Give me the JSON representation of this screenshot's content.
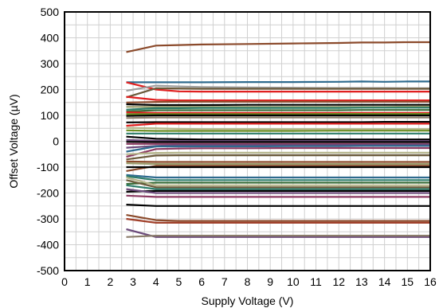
{
  "chart_data": {
    "type": "line",
    "xlabel": "Supply Voltage (V)",
    "ylabel": "Offset Voltage (µV)",
    "xlim": [
      0,
      16
    ],
    "ylim": [
      -500,
      500
    ],
    "x_ticks": [
      0,
      1,
      2,
      3,
      4,
      5,
      6,
      7,
      8,
      9,
      10,
      11,
      12,
      13,
      14,
      15,
      16
    ],
    "y_ticks": [
      -500,
      -400,
      -300,
      -200,
      -100,
      0,
      100,
      200,
      300,
      400,
      500
    ],
    "x_tick_labels": [
      "0",
      "1",
      "2",
      "3",
      "4",
      "5",
      "6",
      "7",
      "8",
      "9",
      "10",
      "11",
      "12",
      "13",
      "14",
      "15",
      "16"
    ],
    "y_tick_labels": [
      "-500",
      "-400",
      "-300",
      "-200",
      "-100",
      "0",
      "100",
      "200",
      "300",
      "400",
      "500"
    ],
    "grid": true,
    "legend": "none",
    "x": [
      2.7,
      4,
      5,
      6,
      8,
      10,
      12,
      13,
      14,
      15,
      16
    ],
    "series": [
      {
        "color": "#8B4A2B",
        "values": [
          345,
          370,
          372,
          374,
          376,
          378,
          380,
          382,
          382,
          383,
          383
        ]
      },
      {
        "color": "#2E6A8E",
        "values": [
          228,
          228,
          228,
          228,
          229,
          229,
          230,
          231,
          230,
          231,
          231
        ]
      },
      {
        "color": "#E02020",
        "values": [
          228,
          200,
          193,
          192,
          192,
          192,
          192,
          192,
          192,
          192,
          192
        ]
      },
      {
        "color": "#9E9E9E",
        "values": [
          195,
          215,
          212,
          210,
          208,
          207,
          206,
          206,
          206,
          205,
          205
        ]
      },
      {
        "color": "#6B5A3A",
        "values": [
          170,
          205,
          204,
          203,
          203,
          203,
          203,
          203,
          203,
          203,
          203
        ]
      },
      {
        "color": "#E02020",
        "values": [
          172,
          160,
          158,
          158,
          158,
          158,
          158,
          158,
          158,
          158,
          158
        ]
      },
      {
        "color": "#8B4A2B",
        "values": [
          150,
          152,
          153,
          153,
          153,
          153,
          153,
          153,
          153,
          153,
          153
        ]
      },
      {
        "color": "#000000",
        "values": [
          143,
          140,
          140,
          140,
          141,
          141,
          141,
          141,
          141,
          141,
          141
        ]
      },
      {
        "color": "#9A9A6A",
        "values": [
          133,
          133,
          133,
          133,
          133,
          133,
          133,
          133,
          133,
          134,
          134
        ]
      },
      {
        "color": "#2E7D6A",
        "values": [
          122,
          128,
          128,
          129,
          129,
          129,
          129,
          130,
          130,
          130,
          130
        ]
      },
      {
        "color": "#3A6E3A",
        "values": [
          115,
          120,
          120,
          120,
          120,
          120,
          120,
          121,
          121,
          121,
          121
        ]
      },
      {
        "color": "#E02020",
        "values": [
          112,
          110,
          110,
          110,
          110,
          110,
          110,
          110,
          110,
          110,
          110
        ]
      },
      {
        "color": "#6B8E23",
        "values": [
          105,
          105,
          105,
          105,
          105,
          105,
          106,
          106,
          106,
          106,
          106
        ]
      },
      {
        "color": "#000000",
        "values": [
          98,
          100,
          100,
          100,
          100,
          100,
          100,
          100,
          100,
          100,
          100
        ]
      },
      {
        "color": "#8B7D6B",
        "values": [
          90,
          92,
          92,
          92,
          92,
          92,
          92,
          92,
          92,
          92,
          92
        ]
      },
      {
        "color": "#000000",
        "values": [
          73,
          74,
          74,
          74,
          74,
          74,
          74,
          74,
          75,
          75,
          75
        ]
      },
      {
        "color": "#E02020",
        "values": [
          60,
          68,
          68,
          68,
          68,
          68,
          68,
          68,
          68,
          68,
          68
        ]
      },
      {
        "color": "#B5B58A",
        "values": [
          52,
          50,
          48,
          47,
          47,
          47,
          47,
          47,
          47,
          47,
          47
        ]
      },
      {
        "color": "#6B8E23",
        "values": [
          42,
          40,
          40,
          40,
          40,
          40,
          41,
          41,
          41,
          41,
          41
        ]
      },
      {
        "color": "#2E7D6A",
        "values": [
          30,
          30,
          30,
          30,
          30,
          30,
          30,
          30,
          30,
          30,
          30
        ]
      },
      {
        "color": "#000000",
        "values": [
          18,
          10,
          8,
          7,
          7,
          7,
          7,
          7,
          7,
          7,
          7
        ]
      },
      {
        "color": "#6B4A7A",
        "values": [
          5,
          2,
          1,
          1,
          1,
          1,
          1,
          1,
          1,
          1,
          1
        ]
      },
      {
        "color": "#000000",
        "values": [
          -2,
          -3,
          -3,
          -3,
          -3,
          -3,
          -3,
          -3,
          -3,
          -3,
          -3
        ]
      },
      {
        "color": "#8B3A62",
        "values": [
          -10,
          -10,
          -10,
          -10,
          -10,
          -10,
          -10,
          -10,
          -10,
          -10,
          -10
        ]
      },
      {
        "color": "#6B4A7A",
        "values": [
          -25,
          -18,
          -15,
          -15,
          -15,
          -15,
          -14,
          -14,
          -13,
          -13,
          -13
        ]
      },
      {
        "color": "#2E6A8E",
        "values": [
          -40,
          -20,
          -20,
          -20,
          -20,
          -19,
          -19,
          -18,
          -18,
          -18,
          -18
        ]
      },
      {
        "color": "#8B3A62",
        "values": [
          -60,
          -30,
          -28,
          -27,
          -27,
          -26,
          -26,
          -26,
          -26,
          -26,
          -26
        ]
      },
      {
        "color": "#B5B58A",
        "values": [
          -50,
          -45,
          -44,
          -44,
          -44,
          -44,
          -44,
          -44,
          -44,
          -44,
          -44
        ]
      },
      {
        "color": "#6B5A3A",
        "values": [
          -70,
          -55,
          -54,
          -54,
          -54,
          -54,
          -54,
          -54,
          -54,
          -54,
          -54
        ]
      },
      {
        "color": "#8B4A2B",
        "values": [
          -78,
          -80,
          -80,
          -80,
          -80,
          -80,
          -80,
          -80,
          -80,
          -80,
          -80
        ]
      },
      {
        "color": "#9A9A6A",
        "values": [
          -85,
          -88,
          -88,
          -88,
          -88,
          -88,
          -88,
          -88,
          -88,
          -88,
          -88
        ]
      },
      {
        "color": "#8B4A2B",
        "values": [
          -115,
          -95,
          -95,
          -95,
          -95,
          -95,
          -95,
          -95,
          -95,
          -95,
          -95
        ]
      },
      {
        "color": "#000000",
        "values": [
          -100,
          -100,
          -100,
          -100,
          -100,
          -100,
          -100,
          -100,
          -100,
          -100,
          -100
        ]
      },
      {
        "color": "#2E6A8E",
        "values": [
          -130,
          -140,
          -140,
          -140,
          -140,
          -140,
          -140,
          -140,
          -140,
          -140,
          -140
        ]
      },
      {
        "color": "#2E7D6A",
        "values": [
          -135,
          -150,
          -150,
          -150,
          -150,
          -150,
          -150,
          -150,
          -150,
          -150,
          -150
        ]
      },
      {
        "color": "#3A6E3A",
        "values": [
          -165,
          -160,
          -160,
          -160,
          -160,
          -160,
          -160,
          -160,
          -160,
          -160,
          -160
        ]
      },
      {
        "color": "#B5B58A",
        "values": [
          -140,
          -170,
          -170,
          -170,
          -170,
          -170,
          -170,
          -170,
          -170,
          -170,
          -170
        ]
      },
      {
        "color": "#6B5A3A",
        "values": [
          -150,
          -178,
          -178,
          -178,
          -178,
          -178,
          -178,
          -178,
          -178,
          -178,
          -178
        ]
      },
      {
        "color": "#2E7D6A",
        "values": [
          -170,
          -185,
          -185,
          -185,
          -185,
          -185,
          -185,
          -185,
          -185,
          -185,
          -185
        ]
      },
      {
        "color": "#000000",
        "values": [
          -195,
          -192,
          -192,
          -192,
          -192,
          -192,
          -192,
          -192,
          -192,
          -192,
          -192
        ]
      },
      {
        "color": "#6B4A7A",
        "values": [
          -185,
          -200,
          -200,
          -200,
          -200,
          -200,
          -200,
          -200,
          -200,
          -200,
          -200
        ]
      },
      {
        "color": "#8B3A62",
        "values": [
          -210,
          -215,
          -215,
          -215,
          -215,
          -215,
          -215,
          -215,
          -215,
          -215,
          -215
        ]
      },
      {
        "color": "#000000",
        "values": [
          -245,
          -250,
          -250,
          -250,
          -250,
          -250,
          -250,
          -250,
          -250,
          -250,
          -250
        ]
      },
      {
        "color": "#8B4A2B",
        "values": [
          -285,
          -305,
          -308,
          -308,
          -308,
          -308,
          -308,
          -308,
          -308,
          -308,
          -308
        ]
      },
      {
        "color": "#A0402A",
        "values": [
          -300,
          -315,
          -315,
          -315,
          -315,
          -315,
          -315,
          -315,
          -315,
          -315,
          -315
        ]
      },
      {
        "color": "#6B4A7A",
        "values": [
          -340,
          -370,
          -370,
          -370,
          -370,
          -370,
          -370,
          -370,
          -370,
          -370,
          -370
        ]
      },
      {
        "color": "#8B7D6B",
        "values": [
          -370,
          -365,
          -365,
          -365,
          -365,
          -365,
          -365,
          -365,
          -365,
          -365,
          -365
        ]
      }
    ]
  }
}
